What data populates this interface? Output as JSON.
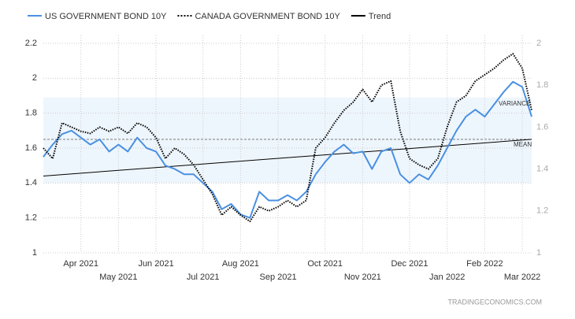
{
  "chart_data": {
    "type": "line",
    "categories": [
      null,
      null,
      null,
      null,
      "Apr 2021",
      null,
      null,
      null,
      "May 2021",
      null,
      null,
      null,
      "Jun 2021",
      null,
      null,
      null,
      null,
      "Jul 2021",
      null,
      null,
      null,
      "Aug 2021",
      null,
      null,
      null,
      "Sep 2021",
      null,
      null,
      null,
      null,
      "Oct 2021",
      null,
      null,
      null,
      "Nov 2021",
      null,
      null,
      null,
      null,
      "Dec 2021",
      null,
      null,
      null,
      "Jan 2022",
      null,
      null,
      null,
      "Feb 2022",
      null,
      null,
      null,
      "Mar 2022",
      null
    ],
    "series": [
      {
        "name": "US GOVERNMENT BOND 10Y",
        "color": "#4a90e2",
        "style": "solid",
        "values": [
          1.55,
          1.62,
          1.68,
          1.7,
          1.66,
          1.62,
          1.65,
          1.58,
          1.62,
          1.58,
          1.66,
          1.6,
          1.58,
          1.5,
          1.48,
          1.45,
          1.45,
          1.4,
          1.35,
          1.25,
          1.28,
          1.22,
          1.2,
          1.35,
          1.3,
          1.3,
          1.33,
          1.3,
          1.35,
          1.45,
          1.52,
          1.58,
          1.62,
          1.57,
          1.58,
          1.48,
          1.58,
          1.6,
          1.45,
          1.4,
          1.45,
          1.42,
          1.5,
          1.6,
          1.7,
          1.78,
          1.82,
          1.78,
          1.85,
          1.92,
          1.98,
          1.95,
          1.78
        ]
      },
      {
        "name": "CANADA GOVERNMENT BOND 10Y",
        "color": "#000000",
        "style": "dotted",
        "axis": "y2",
        "values": [
          1.5,
          1.45,
          1.62,
          1.6,
          1.58,
          1.57,
          1.6,
          1.58,
          1.6,
          1.57,
          1.62,
          1.6,
          1.55,
          1.45,
          1.5,
          1.47,
          1.42,
          1.35,
          1.28,
          1.18,
          1.22,
          1.18,
          1.15,
          1.22,
          1.2,
          1.22,
          1.25,
          1.22,
          1.25,
          1.5,
          1.55,
          1.62,
          1.68,
          1.72,
          1.78,
          1.72,
          1.8,
          1.82,
          1.58,
          1.45,
          1.42,
          1.4,
          1.45,
          1.6,
          1.72,
          1.75,
          1.82,
          1.85,
          1.88,
          1.92,
          1.95,
          1.88,
          1.68
        ]
      }
    ],
    "trend": {
      "name": "Trend",
      "color": "#000000",
      "start": 1.44,
      "end": 1.65
    },
    "variance": {
      "label": "VARIANCE",
      "low": 1.4,
      "high": 1.89
    },
    "mean": {
      "label": "MEAN",
      "value": 1.65
    },
    "ylim": [
      1,
      2.2
    ],
    "yticks": [
      1,
      1.2,
      1.4,
      1.6,
      1.8,
      2,
      2.2
    ],
    "y2lim": [
      1,
      2
    ],
    "y2ticks": [
      1,
      1.2,
      1.4,
      1.6,
      1.8,
      2
    ],
    "grid": true,
    "source": "TRADINGECONOMICS.COM"
  }
}
